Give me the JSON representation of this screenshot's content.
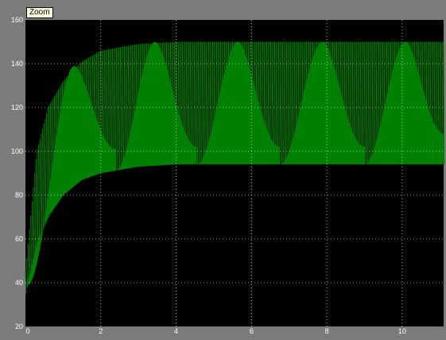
{
  "tooltip": {
    "label": "Zoom"
  },
  "colors": {
    "figure_background": "#7b7b7b",
    "axes_background": "#000000",
    "signal": "#008000",
    "grid": "#ffffff",
    "tick_label": "#ffffff"
  },
  "chart_data": {
    "type": "line",
    "title": "",
    "xlabel": "",
    "ylabel": "",
    "xlim": [
      0,
      11.1
    ],
    "ylim": [
      20,
      160
    ],
    "grid": true,
    "x_ticks": [
      0,
      2,
      4,
      6,
      8,
      10
    ],
    "y_ticks": [
      20,
      40,
      60,
      80,
      100,
      120,
      140,
      160
    ],
    "x_tick_labels": [
      "0",
      "2",
      "4",
      "6",
      "8",
      "10"
    ],
    "y_tick_labels": [
      "20",
      "40",
      "60",
      "80",
      "100",
      "120",
      "140",
      "160"
    ],
    "series": [
      {
        "description_of_shape": "fast oscillation filling an envelope",
        "upper_envelope": {
          "x": [
            0,
            0.3,
            0.6,
            1.0,
            1.5,
            2.0,
            3.0,
            4.0,
            5.0,
            11.1
          ],
          "y": [
            45,
            100,
            120,
            132,
            141,
            146,
            149,
            150,
            150,
            150
          ]
        },
        "lower_envelope": {
          "x": [
            0,
            0.3,
            0.6,
            1.0,
            1.5,
            2.0,
            3.0,
            4.0,
            5.0,
            11.1
          ],
          "y": [
            35,
            58,
            70,
            80,
            87,
            90,
            93,
            94,
            94,
            94
          ]
        }
      },
      {
        "description_of_shape": "slow periodic lobes",
        "lobes": [
          {
            "rise_start": 0.05,
            "peak_x": 1.3,
            "peak_y": 139,
            "end_x": 2.4,
            "end_y": 101
          },
          {
            "rise_start": 2.4,
            "peak_x": 3.45,
            "peak_y": 150,
            "end_x": 4.55,
            "end_y": 102
          },
          {
            "rise_start": 4.55,
            "peak_x": 5.65,
            "peak_y": 150,
            "end_x": 6.75,
            "end_y": 102
          },
          {
            "rise_start": 6.75,
            "peak_x": 7.9,
            "peak_y": 150,
            "end_x": 9.0,
            "end_y": 102
          },
          {
            "rise_start": 9.0,
            "peak_x": 10.1,
            "peak_y": 150,
            "end_x": 11.1,
            "end_y": 108
          }
        ]
      }
    ]
  }
}
